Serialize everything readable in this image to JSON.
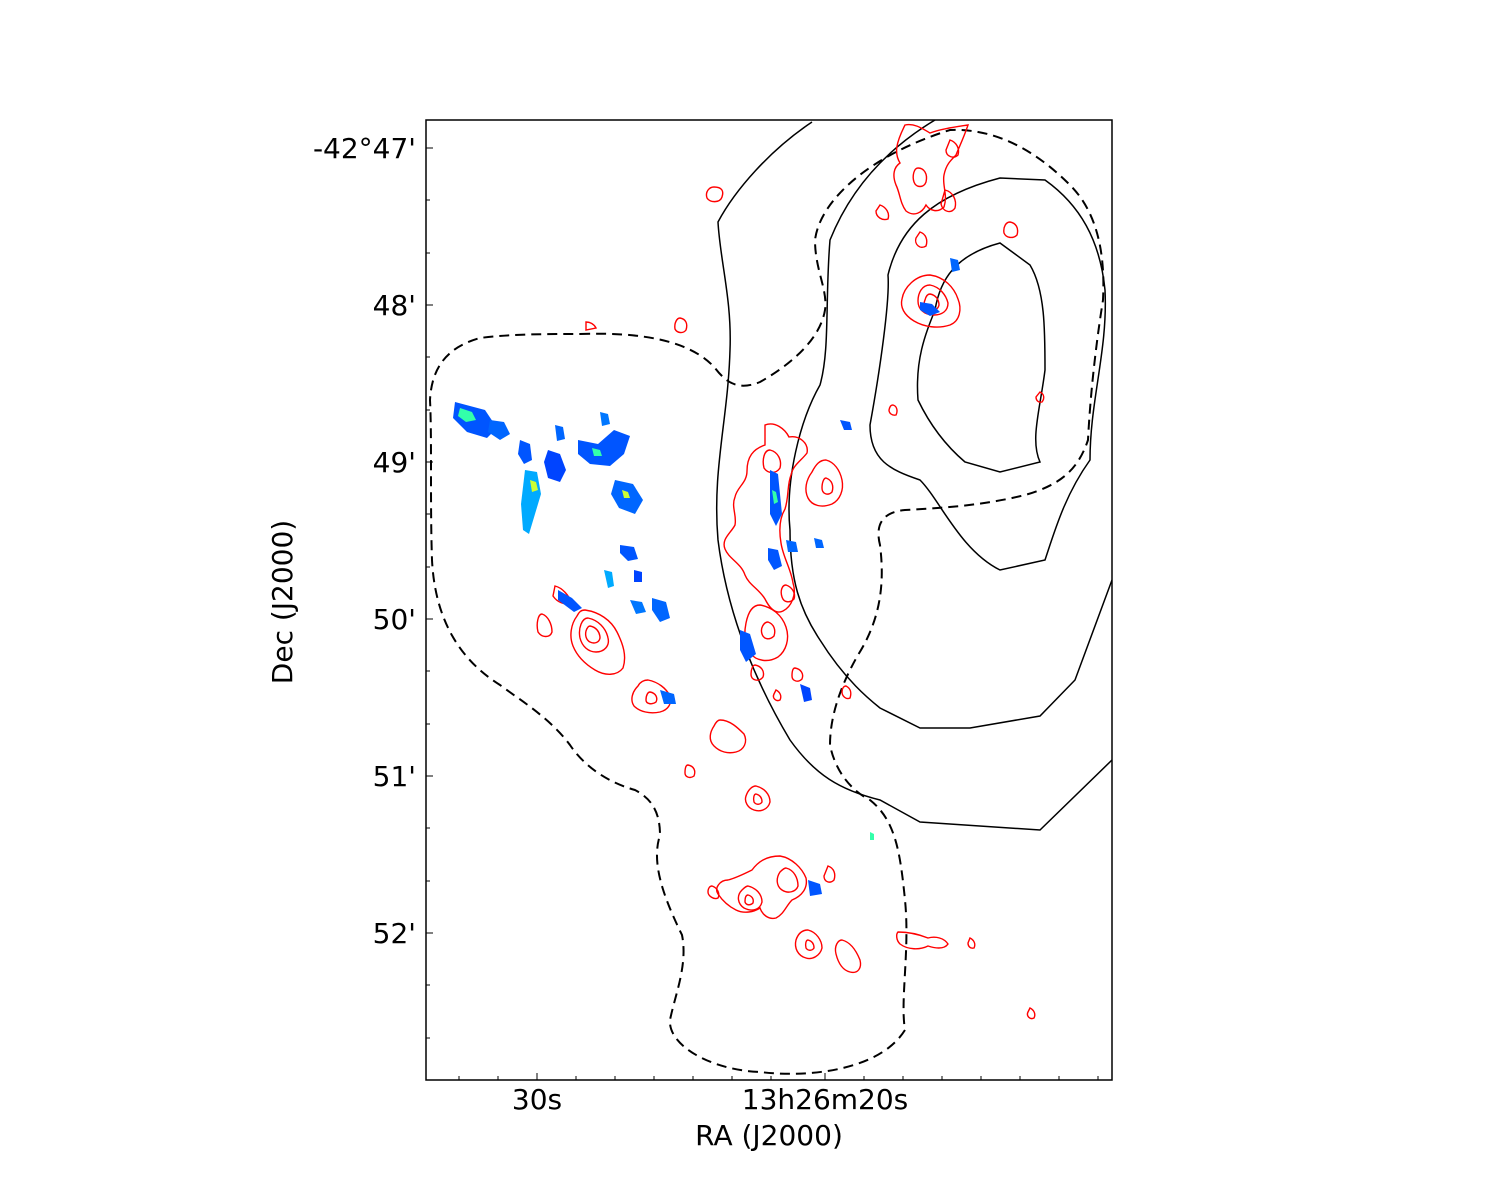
{
  "chart_data": {
    "type": "contour",
    "xlabel": "RA (J2000)",
    "ylabel": "Dec (J2000)",
    "x_ticks": [
      "30s",
      "13h26m20s"
    ],
    "y_ticks": [
      "-42°47'",
      "48'",
      "49'",
      "50'",
      "51'",
      "52'"
    ],
    "grid": false,
    "colors": {
      "radio_contours": "#000000",
      "red_contours": "#ff0000",
      "colormap": [
        "#0000ff",
        "#0077ff",
        "#00ccff",
        "#33ffaa",
        "#ccff33"
      ]
    },
    "layers": [
      {
        "style": "solid black contours"
      },
      {
        "style": "dashed black contour"
      },
      {
        "style": "red contours"
      },
      {
        "style": "color image"
      }
    ]
  }
}
